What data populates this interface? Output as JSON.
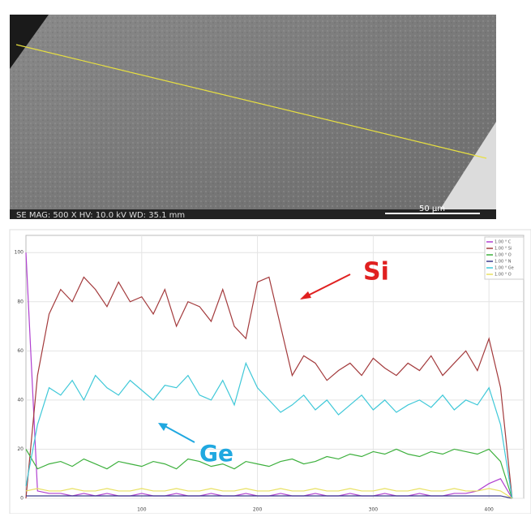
{
  "image": {
    "caption": "SE MAG: 500 X HV: 10.0 kV WD: 35.1 mm",
    "scale_bar": "50 µm"
  },
  "chart_data": {
    "type": "line",
    "x": [
      0,
      10,
      20,
      30,
      40,
      50,
      60,
      70,
      80,
      90,
      100,
      110,
      120,
      130,
      140,
      150,
      160,
      170,
      180,
      190,
      200,
      210,
      220,
      230,
      240,
      250,
      260,
      270,
      280,
      290,
      300,
      310,
      320,
      330,
      340,
      350,
      360,
      370,
      380,
      390,
      400,
      410,
      420
    ],
    "series": [
      {
        "name": "1.00 ° C",
        "color": "#b040d0",
        "values": [
          100,
          3,
          2,
          2,
          1,
          2,
          1,
          2,
          1,
          1,
          2,
          1,
          1,
          2,
          1,
          1,
          2,
          1,
          1,
          2,
          1,
          1,
          2,
          1,
          1,
          2,
          1,
          1,
          2,
          1,
          1,
          2,
          1,
          1,
          2,
          1,
          1,
          2,
          2,
          3,
          6,
          8,
          0
        ]
      },
      {
        "name": "1.00 ° Si",
        "color": "#a33a3c",
        "values": [
          0,
          50,
          75,
          85,
          80,
          90,
          85,
          78,
          88,
          80,
          82,
          75,
          85,
          70,
          80,
          78,
          72,
          85,
          70,
          65,
          88,
          90,
          70,
          50,
          58,
          55,
          48,
          52,
          55,
          50,
          57,
          53,
          50,
          55,
          52,
          58,
          50,
          55,
          60,
          52,
          65,
          45,
          0
        ]
      },
      {
        "name": "1.00 ° O",
        "color": "#3db03d",
        "values": [
          20,
          12,
          14,
          15,
          13,
          16,
          14,
          12,
          15,
          14,
          13,
          15,
          14,
          12,
          16,
          15,
          13,
          14,
          12,
          15,
          14,
          13,
          15,
          16,
          14,
          15,
          17,
          16,
          18,
          17,
          19,
          18,
          20,
          18,
          17,
          19,
          18,
          20,
          19,
          18,
          20,
          15,
          0
        ]
      },
      {
        "name": "1.00 ° N",
        "color": "#3b3b8c",
        "values": [
          1,
          1,
          1,
          1,
          1,
          1,
          1,
          1,
          1,
          1,
          1,
          1,
          1,
          1,
          1,
          1,
          1,
          1,
          1,
          1,
          1,
          1,
          1,
          1,
          1,
          1,
          1,
          1,
          1,
          1,
          1,
          1,
          1,
          1,
          1,
          1,
          1,
          1,
          1,
          1,
          1,
          1,
          0
        ]
      },
      {
        "name": "1.00 ° Ge",
        "color": "#3fc8d8",
        "values": [
          5,
          30,
          45,
          42,
          48,
          40,
          50,
          45,
          42,
          48,
          44,
          40,
          46,
          45,
          50,
          42,
          40,
          48,
          38,
          55,
          45,
          40,
          35,
          38,
          42,
          36,
          40,
          34,
          38,
          42,
          36,
          40,
          35,
          38,
          40,
          37,
          42,
          36,
          40,
          38,
          45,
          30,
          0
        ]
      },
      {
        "name": "1.00 ° O",
        "color": "#e8e060",
        "values": [
          3,
          4,
          3,
          3,
          4,
          3,
          3,
          4,
          3,
          3,
          4,
          3,
          3,
          4,
          3,
          3,
          4,
          3,
          3,
          4,
          3,
          3,
          4,
          3,
          3,
          4,
          3,
          3,
          4,
          3,
          3,
          4,
          3,
          3,
          4,
          3,
          3,
          4,
          3,
          3,
          4,
          3,
          0
        ]
      }
    ],
    "annotations": [
      {
        "text": "Si",
        "color": "#e02020"
      },
      {
        "text": "Ge",
        "color": "#20a8e0"
      }
    ],
    "xlim": [
      0,
      430
    ],
    "xticks": [
      100,
      200,
      300,
      400
    ],
    "ylim": [
      0,
      107
    ],
    "yticks": [
      0,
      20,
      40,
      60,
      80,
      100
    ],
    "grid": true
  }
}
